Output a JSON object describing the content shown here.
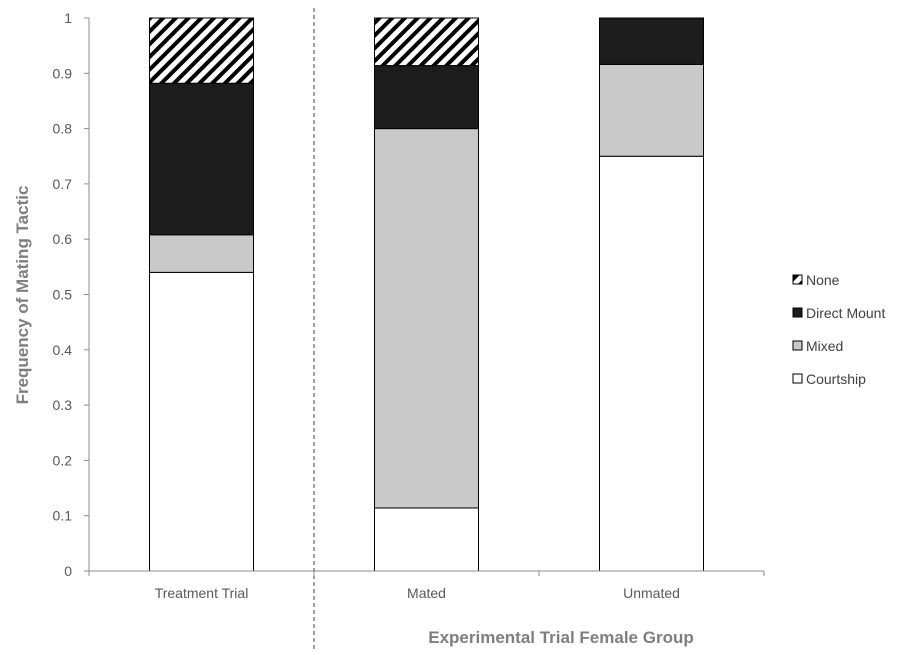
{
  "chart_data": {
    "type": "bar",
    "stacked": true,
    "categories": [
      "Treatment Trial",
      "Mated",
      "Unmated"
    ],
    "series": [
      {
        "name": "Courtship",
        "values": [
          0.54,
          0.114,
          0.75
        ],
        "color": "#ffffff",
        "pattern": "solid"
      },
      {
        "name": "Mixed",
        "values": [
          0.068,
          0.686,
          0.166
        ],
        "color": "#c9c9c9",
        "pattern": "solid"
      },
      {
        "name": "Direct Mount",
        "values": [
          0.274,
          0.114,
          0.084
        ],
        "color": "#1c1c1c",
        "pattern": "solid"
      },
      {
        "name": "None",
        "values": [
          0.118,
          0.086,
          0.0
        ],
        "color": "#000000",
        "pattern": "diagonal-hatch"
      }
    ],
    "xlabel": "Experimental Trial Female Group",
    "ylabel": "Frequency of Mating Tactic",
    "ylim": [
      0,
      1
    ],
    "yticks": [
      "0",
      "0.1",
      "0.2",
      "0.3",
      "0.4",
      "0.5",
      "0.6",
      "0.7",
      "0.8",
      "0.9",
      "1"
    ],
    "grid": false,
    "legend_position": "right",
    "legend_order": [
      "None",
      "Direct Mount",
      "Mixed",
      "Courtship"
    ],
    "separator": "dashed vertical line between Treatment Trial and Mated"
  }
}
